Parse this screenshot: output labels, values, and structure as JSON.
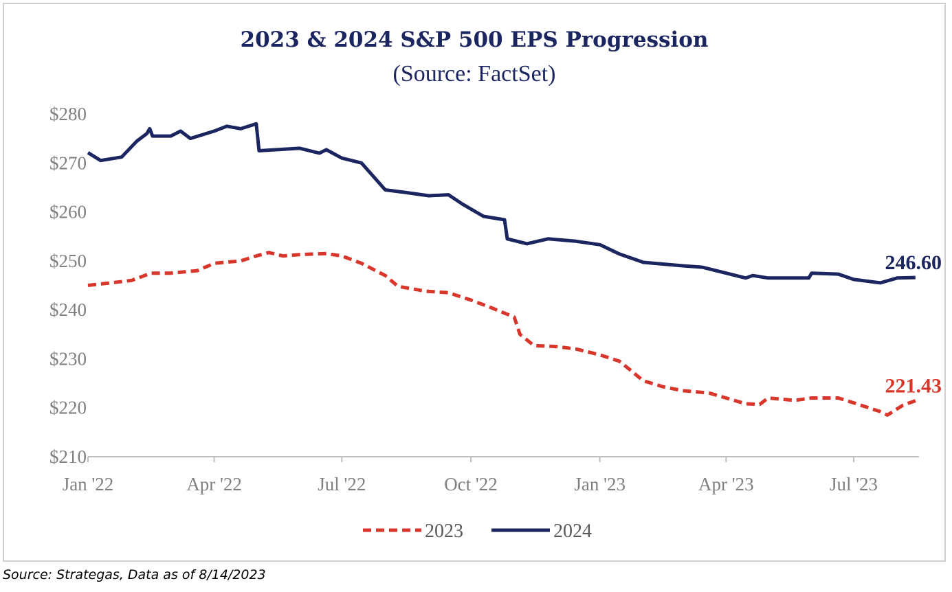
{
  "chart_data": {
    "type": "line",
    "title": "2023 & 2024 S&P 500 EPS Progression",
    "subtitle": "(Source: FactSet)",
    "xlabel": "",
    "ylabel": "",
    "ylim": [
      210,
      280
    ],
    "xlim": [
      "2022-01-01",
      "2023-08-14"
    ],
    "yticks": [
      280,
      270,
      260,
      250,
      240,
      230,
      220,
      210
    ],
    "ytick_labels": [
      "$280",
      "$270",
      "$260",
      "$250",
      "$240",
      "$230",
      "$220",
      "$210"
    ],
    "xticks": [
      "2022-01-01",
      "2022-04-01",
      "2022-07-01",
      "2022-10-01",
      "2023-01-01",
      "2023-04-01",
      "2023-07-01"
    ],
    "xtick_labels": [
      "Jan '22",
      "Apr '22",
      "Jul '22",
      "Oct '22",
      "Jan '23",
      "Apr '23",
      "Jul '23"
    ],
    "grid": false,
    "legend_position": "bottom",
    "series": [
      {
        "name": "2023",
        "color": "#d9362b",
        "style": "dashed",
        "end_label": "221.43",
        "points": [
          [
            "2022-01-01",
            245.0
          ],
          [
            "2022-01-20",
            245.6
          ],
          [
            "2022-02-01",
            246.0
          ],
          [
            "2022-02-15",
            247.5
          ],
          [
            "2022-03-01",
            247.5
          ],
          [
            "2022-03-20",
            248.0
          ],
          [
            "2022-04-01",
            249.5
          ],
          [
            "2022-04-20",
            250.0
          ],
          [
            "2022-05-01",
            251.0
          ],
          [
            "2022-05-10",
            251.7
          ],
          [
            "2022-05-20",
            251.0
          ],
          [
            "2022-06-01",
            251.3
          ],
          [
            "2022-06-20",
            251.5
          ],
          [
            "2022-07-01",
            251.0
          ],
          [
            "2022-07-15",
            249.5
          ],
          [
            "2022-08-01",
            247.0
          ],
          [
            "2022-08-10",
            244.8
          ],
          [
            "2022-08-30",
            243.8
          ],
          [
            "2022-09-15",
            243.5
          ],
          [
            "2022-10-01",
            242.0
          ],
          [
            "2022-10-15",
            240.5
          ],
          [
            "2022-11-01",
            238.5
          ],
          [
            "2022-11-05",
            235.0
          ],
          [
            "2022-11-15",
            232.7
          ],
          [
            "2022-12-01",
            232.5
          ],
          [
            "2022-12-15",
            232.0
          ],
          [
            "2023-01-01",
            230.8
          ],
          [
            "2023-01-15",
            229.5
          ],
          [
            "2023-02-01",
            225.5
          ],
          [
            "2023-02-15",
            224.3
          ],
          [
            "2023-03-01",
            223.5
          ],
          [
            "2023-03-20",
            223.0
          ],
          [
            "2023-04-01",
            222.0
          ],
          [
            "2023-04-15",
            220.8
          ],
          [
            "2023-04-25",
            220.7
          ],
          [
            "2023-05-01",
            222.0
          ],
          [
            "2023-05-20",
            221.5
          ],
          [
            "2023-06-01",
            222.0
          ],
          [
            "2023-06-20",
            222.0
          ],
          [
            "2023-07-01",
            221.0
          ],
          [
            "2023-07-20",
            219.2
          ],
          [
            "2023-07-25",
            218.5
          ],
          [
            "2023-08-05",
            220.5
          ],
          [
            "2023-08-14",
            221.43
          ]
        ]
      },
      {
        "name": "2024",
        "color": "#1b2560",
        "style": "solid",
        "end_label": "246.60",
        "points": [
          [
            "2022-01-01",
            272.1
          ],
          [
            "2022-01-10",
            270.5
          ],
          [
            "2022-01-25",
            271.2
          ],
          [
            "2022-02-05",
            274.5
          ],
          [
            "2022-02-12",
            276.0
          ],
          [
            "2022-02-14",
            277.0
          ],
          [
            "2022-02-16",
            275.5
          ],
          [
            "2022-03-01",
            275.5
          ],
          [
            "2022-03-08",
            276.5
          ],
          [
            "2022-03-15",
            275.0
          ],
          [
            "2022-04-01",
            276.5
          ],
          [
            "2022-04-10",
            277.5
          ],
          [
            "2022-04-20",
            277.0
          ],
          [
            "2022-05-01",
            278.0
          ],
          [
            "2022-05-03",
            272.5
          ],
          [
            "2022-06-01",
            273.0
          ],
          [
            "2022-06-15",
            272.0
          ],
          [
            "2022-06-20",
            272.7
          ],
          [
            "2022-07-01",
            271.0
          ],
          [
            "2022-07-15",
            270.0
          ],
          [
            "2022-08-01",
            264.5
          ],
          [
            "2022-08-15",
            264.0
          ],
          [
            "2022-09-01",
            263.3
          ],
          [
            "2022-09-15",
            263.5
          ],
          [
            "2022-09-25",
            261.6
          ],
          [
            "2022-10-10",
            259.1
          ],
          [
            "2022-10-25",
            258.4
          ],
          [
            "2022-10-27",
            254.5
          ],
          [
            "2022-11-10",
            253.5
          ],
          [
            "2022-11-25",
            254.5
          ],
          [
            "2022-12-15",
            254.0
          ],
          [
            "2023-01-01",
            253.3
          ],
          [
            "2023-01-15",
            251.4
          ],
          [
            "2023-02-01",
            249.7
          ],
          [
            "2023-03-01",
            249.0
          ],
          [
            "2023-03-15",
            248.7
          ],
          [
            "2023-04-01",
            247.5
          ],
          [
            "2023-04-15",
            246.5
          ],
          [
            "2023-04-20",
            247.0
          ],
          [
            "2023-05-01",
            246.5
          ],
          [
            "2023-05-30",
            246.5
          ],
          [
            "2023-06-01",
            247.5
          ],
          [
            "2023-06-20",
            247.3
          ],
          [
            "2023-07-01",
            246.2
          ],
          [
            "2023-07-20",
            245.5
          ],
          [
            "2023-08-01",
            246.5
          ],
          [
            "2023-08-14",
            246.6
          ]
        ]
      }
    ]
  },
  "footer": "Source: Strategas, Data as of 8/14/2023"
}
